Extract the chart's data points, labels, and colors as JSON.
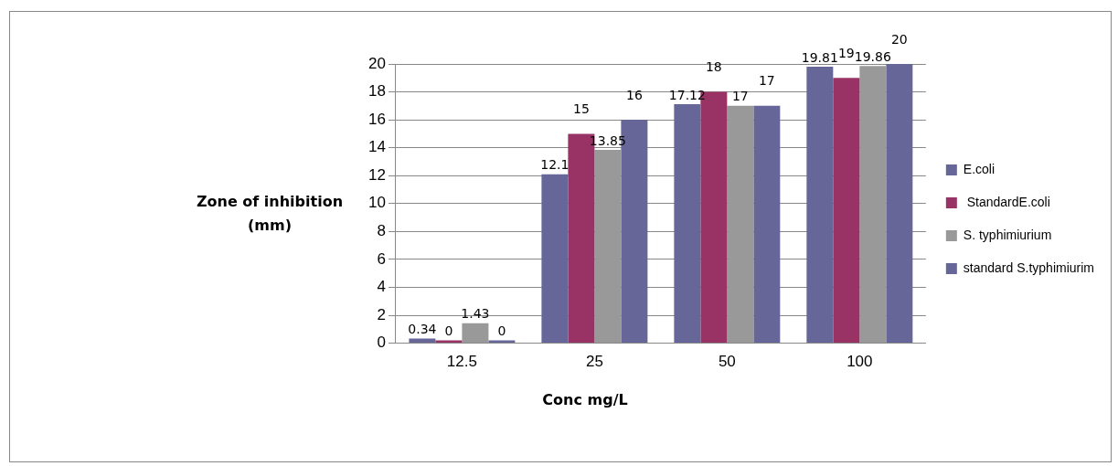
{
  "chart_data": {
    "type": "bar",
    "xlabel": "Conc mg/L",
    "ylabel": "Zone of inhibition (mm)",
    "categories": [
      "12.5",
      "25",
      "50",
      "100"
    ],
    "series": [
      {
        "name": "E.coli",
        "color": "#666699",
        "values": [
          0.34,
          12.1,
          17.12,
          19.81
        ]
      },
      {
        "name": " StandardE.coli",
        "color": "#993366",
        "values": [
          0,
          15,
          18,
          19
        ]
      },
      {
        "name": "S. typhimiurium",
        "color": "#999999",
        "values": [
          1.43,
          13.85,
          17,
          19.86
        ]
      },
      {
        "name": "standard S.typhimiurim",
        "color": "#666699",
        "values": [
          0,
          16,
          17,
          20
        ]
      }
    ],
    "ylim": [
      0,
      20
    ],
    "yticks": [
      0,
      2,
      4,
      6,
      8,
      10,
      12,
      14,
      16,
      18,
      20
    ],
    "grid": "y",
    "legend": "right",
    "data_labels": true
  }
}
